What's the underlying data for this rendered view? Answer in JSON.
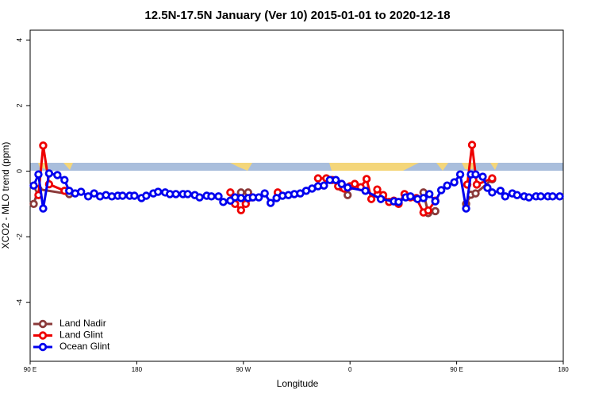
{
  "chart_data": {
    "type": "line",
    "title": "12.5N-17.5N January (Ver 10)   2015-01-01 to 2020-12-18",
    "x_label": "Longitude",
    "y_label": "XCO2 - MLO trend (ppm)",
    "xlim": [
      90,
      540
    ],
    "xticks": [
      {
        "value": 90,
        "label": "90 E"
      },
      180,
      {
        "value": 270,
        "label": "90 W"
      },
      {
        "value": 360,
        "label": "0"
      },
      {
        "value": 450,
        "label": "90 E"
      },
      {
        "value": 540,
        "label": "180"
      }
    ],
    "ylim": [
      -5.8,
      4.3
    ],
    "yticks": [
      -4,
      -2,
      0,
      2,
      4
    ],
    "legend": "bottom-left",
    "series": [
      {
        "name": "Land Nadir",
        "color": "#8b3a3a",
        "x": [
          93,
          97,
          123,
          200,
          268,
          274,
          310,
          353,
          358,
          390,
          422,
          426,
          432,
          440,
          458,
          462,
          466,
          480
        ],
        "values": [
          -1.0,
          -0.55,
          -0.7,
          null,
          -0.65,
          -0.65,
          null,
          -0.5,
          -0.73,
          null,
          -0.65,
          -1.28,
          -1.22,
          null,
          -1.0,
          -0.72,
          -0.68,
          -0.25
        ]
      },
      {
        "name": "Land Glint",
        "color": "#ee0000",
        "x": [
          97,
          101,
          106,
          119,
          200,
          259,
          263,
          268,
          272,
          277,
          290,
          299,
          320,
          333,
          340,
          345,
          350,
          355,
          360,
          364,
          369,
          374,
          378,
          383,
          388,
          393,
          397,
          401,
          406,
          411,
          416,
          422,
          426,
          432,
          440,
          459,
          463,
          467,
          480
        ],
        "values": [
          -0.73,
          0.78,
          -0.4,
          -0.6,
          null,
          -0.65,
          -1.0,
          -1.19,
          -1.0,
          -0.8,
          null,
          -0.65,
          null,
          -0.22,
          -0.22,
          -0.27,
          -0.46,
          -0.53,
          -0.46,
          -0.39,
          -0.49,
          -0.24,
          -0.85,
          -0.56,
          -0.73,
          -0.94,
          -0.9,
          -1.0,
          -0.7,
          -0.8,
          -0.82,
          -1.26,
          -1.2,
          -0.9,
          null,
          -0.41,
          0.8,
          -0.41,
          -0.22
        ]
      },
      {
        "name": "Ocean Glint",
        "color": "#0000ee",
        "x": [
          93,
          97,
          101,
          106,
          113,
          119,
          123,
          128,
          133,
          139,
          144,
          149,
          154,
          159,
          164,
          168,
          174,
          178,
          184,
          188,
          194,
          198,
          204,
          208,
          213,
          219,
          223,
          229,
          233,
          239,
          243,
          249,
          253,
          259,
          263,
          268,
          274,
          278,
          283,
          288,
          293,
          298,
          303,
          308,
          313,
          318,
          323,
          328,
          333,
          338,
          343,
          348,
          353,
          358,
          373,
          386,
          397,
          401,
          407,
          411,
          417,
          422,
          427,
          432,
          437,
          442,
          448,
          453,
          458,
          462,
          466,
          472,
          476,
          480,
          487,
          491,
          497,
          501,
          507,
          511,
          517,
          521,
          527,
          531,
          537
        ],
        "values": [
          -0.44,
          -0.1,
          -1.14,
          -0.07,
          -0.12,
          -0.27,
          -0.6,
          -0.68,
          -0.63,
          -0.77,
          -0.68,
          -0.77,
          -0.73,
          -0.77,
          -0.75,
          -0.75,
          -0.75,
          -0.75,
          -0.82,
          -0.75,
          -0.68,
          -0.63,
          -0.65,
          -0.7,
          -0.7,
          -0.7,
          -0.7,
          -0.73,
          -0.8,
          -0.75,
          -0.77,
          -0.77,
          -0.94,
          -0.9,
          -0.8,
          -0.82,
          -0.82,
          -0.8,
          -0.8,
          -0.68,
          -0.97,
          -0.82,
          -0.75,
          -0.73,
          -0.7,
          -0.68,
          -0.6,
          -0.53,
          -0.46,
          -0.44,
          -0.27,
          -0.27,
          -0.39,
          -0.5,
          -0.6,
          -0.85,
          -0.92,
          -0.94,
          -0.8,
          -0.77,
          -0.85,
          -0.82,
          -0.7,
          -0.92,
          -0.58,
          -0.44,
          -0.34,
          -0.1,
          -1.14,
          -0.1,
          -0.1,
          -0.17,
          -0.51,
          -0.65,
          -0.6,
          -0.77,
          -0.68,
          -0.73,
          -0.77,
          -0.8,
          -0.77,
          -0.77,
          -0.77,
          -0.77,
          -0.77
        ]
      }
    ]
  }
}
